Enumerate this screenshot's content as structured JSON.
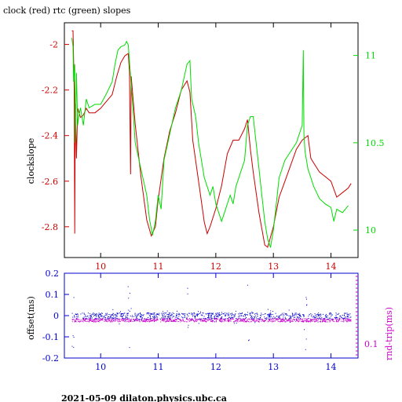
{
  "chart_data": [
    {
      "type": "line",
      "title": "clock (red) rtc (green) slopes",
      "ylabel": "clockslope",
      "xlim": [
        9.37,
        14.47
      ],
      "ylim": [
        -2.935,
        -1.905
      ],
      "y2lim": [
        9.843,
        11.187
      ],
      "x_ticks": [
        10,
        11,
        12,
        13,
        14
      ],
      "y_ticks": [
        -2,
        -2.2,
        -2.4,
        -2.6,
        -2.8
      ],
      "y2_ticks": [
        10,
        10.5,
        11
      ],
      "x_tick_labels": [
        "10",
        "11",
        "12",
        "13",
        "14"
      ],
      "y_tick_labels": [
        "-2",
        "-2.2",
        "-2.4",
        "-2.6",
        "-2.8"
      ],
      "y2_tick_labels": [
        "10",
        "10.5",
        "11"
      ],
      "colors": {
        "clock": "#cc0000",
        "rtc": "#00dd00",
        "axis": "#000000"
      },
      "series": [
        {
          "name": "clock",
          "axis": "left",
          "points": [
            [
              9.5,
              -1.94
            ],
            [
              9.52,
              -1.94
            ],
            [
              9.54,
              -2.2
            ],
            [
              9.55,
              -2.83
            ],
            [
              9.56,
              -2.26
            ],
            [
              9.58,
              -2.5
            ],
            [
              9.6,
              -2.28
            ],
            [
              9.65,
              -2.32
            ],
            [
              9.7,
              -2.31
            ],
            [
              9.75,
              -2.28
            ],
            [
              9.8,
              -2.3
            ],
            [
              9.9,
              -2.3
            ],
            [
              10,
              -2.28
            ],
            [
              10.1,
              -2.25
            ],
            [
              10.2,
              -2.22
            ],
            [
              10.28,
              -2.14
            ],
            [
              10.35,
              -2.08
            ],
            [
              10.42,
              -2.05
            ],
            [
              10.48,
              -2.04
            ],
            [
              10.5,
              -2.12
            ],
            [
              10.52,
              -2.57
            ],
            [
              10.53,
              -2.14
            ],
            [
              10.6,
              -2.35
            ],
            [
              10.7,
              -2.58
            ],
            [
              10.8,
              -2.77
            ],
            [
              10.88,
              -2.84
            ],
            [
              10.95,
              -2.8
            ],
            [
              11,
              -2.68
            ],
            [
              11.1,
              -2.5
            ],
            [
              11.2,
              -2.38
            ],
            [
              11.3,
              -2.3
            ],
            [
              11.4,
              -2.2
            ],
            [
              11.5,
              -2.16
            ],
            [
              11.55,
              -2.21
            ],
            [
              11.6,
              -2.42
            ],
            [
              11.7,
              -2.6
            ],
            [
              11.8,
              -2.78
            ],
            [
              11.85,
              -2.83
            ],
            [
              11.9,
              -2.8
            ],
            [
              12,
              -2.72
            ],
            [
              12.1,
              -2.62
            ],
            [
              12.2,
              -2.48
            ],
            [
              12.3,
              -2.42
            ],
            [
              12.4,
              -2.42
            ],
            [
              12.5,
              -2.37
            ],
            [
              12.55,
              -2.33
            ],
            [
              12.6,
              -2.46
            ],
            [
              12.65,
              -2.56
            ],
            [
              12.75,
              -2.74
            ],
            [
              12.85,
              -2.88
            ],
            [
              12.9,
              -2.89
            ],
            [
              13,
              -2.8
            ],
            [
              13.1,
              -2.67
            ],
            [
              13.2,
              -2.6
            ],
            [
              13.3,
              -2.53
            ],
            [
              13.4,
              -2.46
            ],
            [
              13.5,
              -2.42
            ],
            [
              13.55,
              -2.41
            ],
            [
              13.6,
              -2.4
            ],
            [
              13.65,
              -2.5
            ],
            [
              13.7,
              -2.52
            ],
            [
              13.8,
              -2.56
            ],
            [
              13.9,
              -2.58
            ],
            [
              14,
              -2.6
            ],
            [
              14.1,
              -2.67
            ],
            [
              14.2,
              -2.65
            ],
            [
              14.3,
              -2.63
            ],
            [
              14.35,
              -2.61
            ]
          ]
        },
        {
          "name": "rtc",
          "axis": "right",
          "points": [
            [
              9.5,
              11.1
            ],
            [
              9.52,
              11.05
            ],
            [
              9.53,
              10.85
            ],
            [
              9.55,
              10.95
            ],
            [
              9.56,
              10.5
            ],
            [
              9.58,
              10.9
            ],
            [
              9.6,
              10.6
            ],
            [
              9.62,
              10.65
            ],
            [
              9.65,
              10.7
            ],
            [
              9.7,
              10.6
            ],
            [
              9.75,
              10.75
            ],
            [
              9.8,
              10.7
            ],
            [
              9.9,
              10.72
            ],
            [
              10,
              10.72
            ],
            [
              10.1,
              10.78
            ],
            [
              10.2,
              10.85
            ],
            [
              10.25,
              10.95
            ],
            [
              10.3,
              11.03
            ],
            [
              10.35,
              11.05
            ],
            [
              10.42,
              11.06
            ],
            [
              10.45,
              11.08
            ],
            [
              10.48,
              11.06
            ],
            [
              10.52,
              10.88
            ],
            [
              10.56,
              10.7
            ],
            [
              10.6,
              10.5
            ],
            [
              10.7,
              10.35
            ],
            [
              10.8,
              10.2
            ],
            [
              10.85,
              10.06
            ],
            [
              10.9,
              9.97
            ],
            [
              10.95,
              10.05
            ],
            [
              11,
              10.2
            ],
            [
              11.05,
              10.12
            ],
            [
              11.1,
              10.4
            ],
            [
              11.2,
              10.55
            ],
            [
              11.3,
              10.7
            ],
            [
              11.4,
              10.8
            ],
            [
              11.5,
              10.95
            ],
            [
              11.55,
              10.97
            ],
            [
              11.58,
              10.75
            ],
            [
              11.65,
              10.65
            ],
            [
              11.7,
              10.5
            ],
            [
              11.8,
              10.3
            ],
            [
              11.9,
              10.2
            ],
            [
              11.95,
              10.25
            ],
            [
              12,
              10.15
            ],
            [
              12.1,
              10.05
            ],
            [
              12.15,
              10.1
            ],
            [
              12.2,
              10.15
            ],
            [
              12.25,
              10.2
            ],
            [
              12.3,
              10.15
            ],
            [
              12.35,
              10.25
            ],
            [
              12.4,
              10.3
            ],
            [
              12.5,
              10.4
            ],
            [
              12.55,
              10.6
            ],
            [
              12.6,
              10.65
            ],
            [
              12.65,
              10.65
            ],
            [
              12.7,
              10.5
            ],
            [
              12.75,
              10.35
            ],
            [
              12.8,
              10.2
            ],
            [
              12.85,
              10.05
            ],
            [
              12.9,
              9.95
            ],
            [
              12.95,
              9.9
            ],
            [
              13,
              10.0
            ],
            [
              13.05,
              10.15
            ],
            [
              13.1,
              10.3
            ],
            [
              13.2,
              10.4
            ],
            [
              13.3,
              10.45
            ],
            [
              13.4,
              10.5
            ],
            [
              13.45,
              10.55
            ],
            [
              13.5,
              10.6
            ],
            [
              13.52,
              11.03
            ],
            [
              13.53,
              10.55
            ],
            [
              13.55,
              10.45
            ],
            [
              13.6,
              10.35
            ],
            [
              13.65,
              10.3
            ],
            [
              13.7,
              10.25
            ],
            [
              13.8,
              10.18
            ],
            [
              13.9,
              10.15
            ],
            [
              14,
              10.13
            ],
            [
              14.05,
              10.05
            ],
            [
              14.1,
              10.12
            ],
            [
              14.2,
              10.1
            ],
            [
              14.3,
              10.14
            ]
          ]
        }
      ]
    },
    {
      "type": "scatter",
      "ylabel": "offset(ms)",
      "y2label": "rnd-trip(ms)",
      "xlim": [
        9.37,
        14.47
      ],
      "ylim": [
        -0.2,
        0.2
      ],
      "x_ticks": [
        10,
        11,
        12,
        13,
        14
      ],
      "y_ticks": [
        -0.2,
        -0.1,
        0,
        0.1,
        0.2
      ],
      "x_tick_labels": [
        "10",
        "11",
        "12",
        "13",
        "14"
      ],
      "y_tick_labels": [
        "-0.2",
        "-0.1",
        "0",
        "0.1",
        "0.2"
      ],
      "y2_tick_labels": [
        "0.1"
      ],
      "colors": {
        "offset": "#0000cc",
        "roundtrip": "#cc00cc",
        "axis": "#0000cc"
      },
      "series": [
        {
          "name": "offset",
          "mean": 0.0,
          "spread": 0.015
        },
        {
          "name": "rnd-trip",
          "mean": -0.02,
          "spread": 0.008
        }
      ]
    }
  ],
  "footer": "2021-05-09  dilaton.physics.ubc.ca"
}
